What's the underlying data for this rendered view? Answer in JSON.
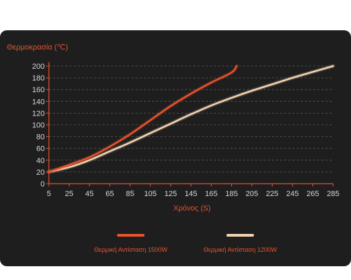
{
  "chart_data": {
    "type": "line",
    "ylabel": "Θερμοκρασία (℃)",
    "xlabel": "Χρόνος (S)",
    "xlim": [
      5,
      285
    ],
    "ylim": [
      0,
      200
    ],
    "x_ticks": [
      5,
      25,
      45,
      65,
      85,
      105,
      125,
      145,
      165,
      185,
      205,
      225,
      245,
      265,
      285
    ],
    "y_ticks": [
      0,
      20,
      40,
      60,
      80,
      100,
      120,
      140,
      160,
      180,
      200
    ],
    "grid": "horizontal-dashed",
    "legend_position": "bottom",
    "series": [
      {
        "name": "Θερμική Αντίσταση 1500W",
        "color": "#e8532c",
        "x": [
          5,
          25,
          45,
          65,
          85,
          105,
          125,
          145,
          165,
          185,
          190
        ],
        "y": [
          20,
          32,
          45,
          63,
          84,
          108,
          132,
          153,
          172,
          189,
          200
        ]
      },
      {
        "name": "Θερμική Αντίσταση 1200W",
        "color": "#f3d3b0",
        "x": [
          5,
          25,
          45,
          65,
          85,
          105,
          125,
          145,
          165,
          185,
          205,
          225,
          245,
          265,
          285
        ],
        "y": [
          20,
          28,
          40,
          55,
          70,
          86,
          102,
          118,
          133,
          146,
          158,
          169,
          180,
          190,
          200
        ]
      }
    ]
  }
}
